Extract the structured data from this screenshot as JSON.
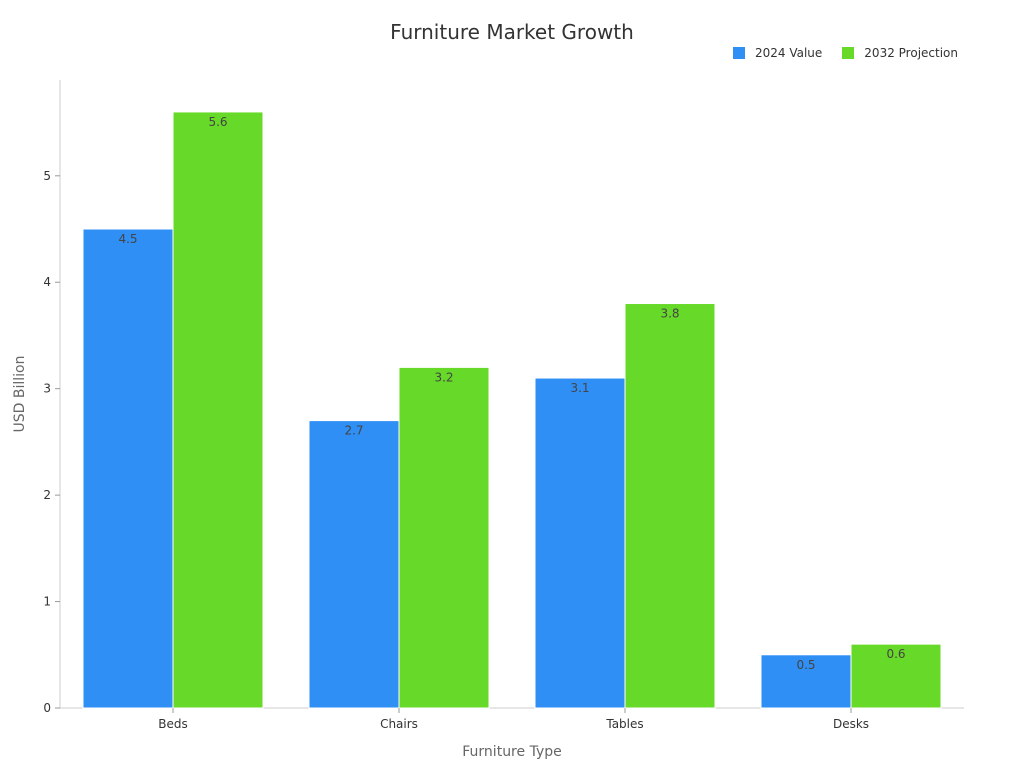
{
  "chart_data": {
    "type": "bar",
    "title": "Furniture Market Growth",
    "xlabel": "Furniture Type",
    "ylabel": "USD Billion",
    "categories": [
      "Beds",
      "Chairs",
      "Tables",
      "Desks"
    ],
    "series": [
      {
        "name": "2024 Value",
        "values": [
          4.5,
          2.7,
          3.1,
          0.5
        ],
        "color": "#2f8ff5"
      },
      {
        "name": "2032 Projection",
        "values": [
          5.6,
          3.2,
          3.8,
          0.6
        ],
        "color": "#67d929"
      }
    ],
    "ylim": [
      0,
      5.9
    ],
    "yticks": [
      0,
      1,
      2,
      3,
      4,
      5
    ],
    "ytick_labels": [
      "0",
      "1",
      "2",
      "3",
      "4",
      "5"
    ],
    "grid": false,
    "legend": "top-right"
  }
}
